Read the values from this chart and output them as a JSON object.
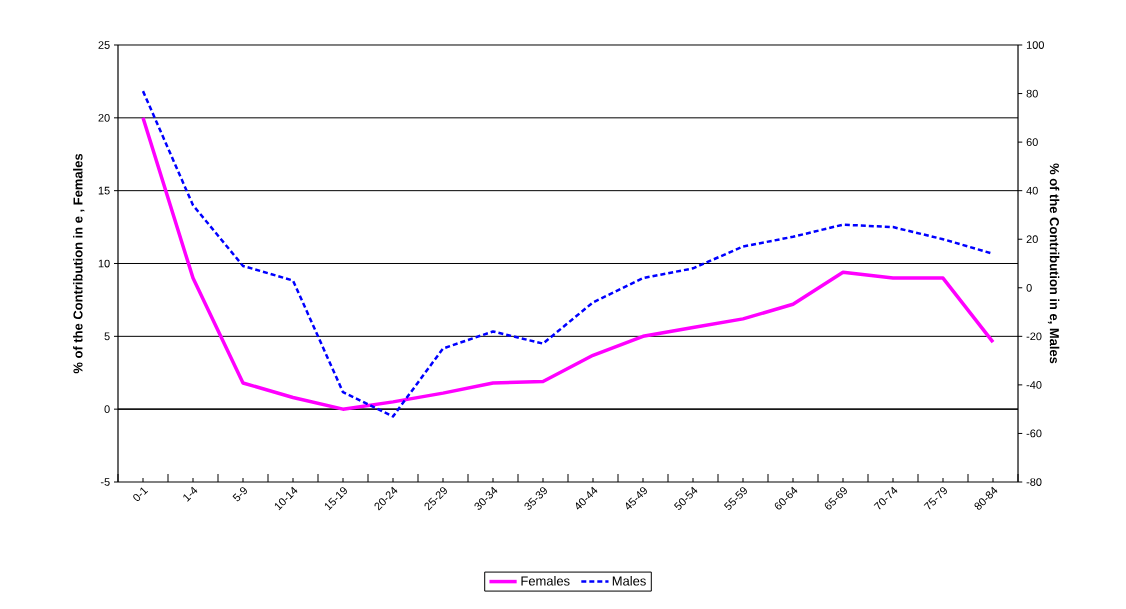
{
  "chart_data": {
    "type": "line",
    "categories": [
      "0-1",
      "1-4",
      "5-9",
      "10-14",
      "15-19",
      "20-24",
      "25-29",
      "30-34",
      "35-39",
      "40-44",
      "45-49",
      "50-54",
      "55-59",
      "60-64",
      "65-69",
      "70-74",
      "75-79",
      "80-84"
    ],
    "series": [
      {
        "name": "Females",
        "color": "#ff00ff",
        "line_style": "solid",
        "values": [
          20,
          9,
          1.8,
          0.8,
          0,
          0.5,
          1.1,
          1.8,
          1.9,
          3.7,
          5.0,
          5.6,
          6.2,
          7.2,
          9.4,
          9.0,
          9.0,
          4.6
        ]
      },
      {
        "name": "Males",
        "color": "#0000ff",
        "line_style": "dashed",
        "axis": "y2",
        "values": [
          81,
          34,
          9,
          3,
          -43,
          -53,
          -25,
          -18,
          -23,
          -6,
          4,
          8,
          17,
          21,
          26,
          25,
          20,
          14
        ]
      }
    ],
    "ylabel": "% of the Contribution in e , Females",
    "y2label": "% of the Contribution in e, Males",
    "ylim": [
      -5,
      25
    ],
    "yticks": [
      -5,
      0,
      5,
      10,
      15,
      20,
      25
    ],
    "y2lim": [
      -80,
      100
    ],
    "y2ticks": [
      -80,
      -60,
      -40,
      -20,
      0,
      20,
      40,
      60,
      80,
      100
    ],
    "grid": "y",
    "legend": "bottom",
    "marker": "none"
  }
}
